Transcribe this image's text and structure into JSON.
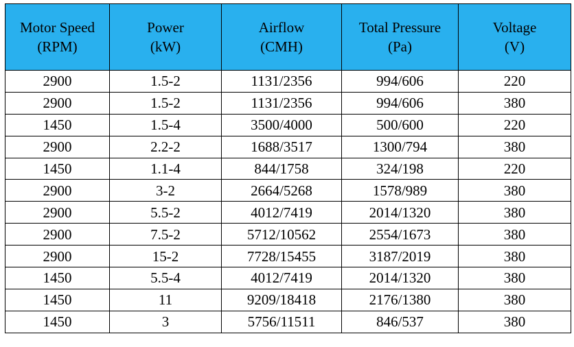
{
  "table": {
    "header_bg": "#29b0ee",
    "columns": [
      {
        "line1": "Motor Speed",
        "line2": "(RPM)"
      },
      {
        "line1": "Power",
        "line2": "(kW)"
      },
      {
        "line1": "Airflow",
        "line2": "(CMH)"
      },
      {
        "line1": "Total Pressure",
        "line2": "(Pa)"
      },
      {
        "line1": "Voltage",
        "line2": "(V)"
      }
    ],
    "rows": [
      [
        "2900",
        "1.5-2",
        "1131/2356",
        "994/606",
        "220"
      ],
      [
        "2900",
        "1.5-2",
        "1131/2356",
        "994/606",
        "380"
      ],
      [
        "1450",
        "1.5-4",
        "3500/4000",
        "500/600",
        "220"
      ],
      [
        "2900",
        "2.2-2",
        "1688/3517",
        "1300/794",
        "380"
      ],
      [
        "1450",
        "1.1-4",
        "844/1758",
        "324/198",
        "220"
      ],
      [
        "2900",
        "3-2",
        "2664/5268",
        "1578/989",
        "380"
      ],
      [
        "2900",
        "5.5-2",
        "4012/7419",
        "2014/1320",
        "380"
      ],
      [
        "2900",
        "7.5-2",
        "5712/10562",
        "2554/1673",
        "380"
      ],
      [
        "2900",
        "15-2",
        "7728/15455",
        "3187/2019",
        "380"
      ],
      [
        "1450",
        "5.5-4",
        "4012/7419",
        "2014/1320",
        "380"
      ],
      [
        "1450",
        "11",
        "9209/18418",
        "2176/1380",
        "380"
      ],
      [
        "1450",
        "3",
        "5756/11511",
        "846/537",
        "380"
      ]
    ]
  }
}
